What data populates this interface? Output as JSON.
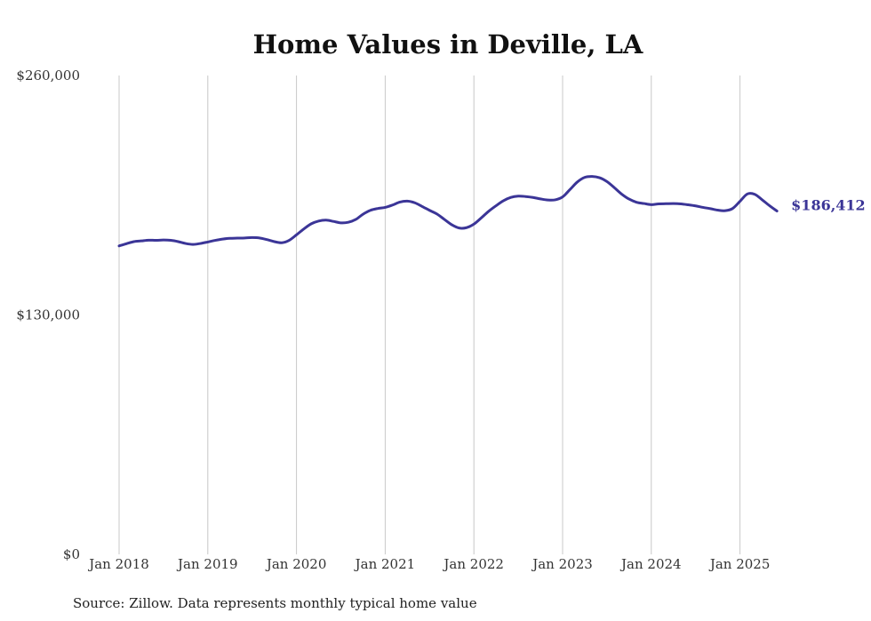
{
  "chart_data": {
    "type": "line",
    "title": "Home Values in Deville, LA",
    "source": "Source: Zillow. Data represents monthly typical home value",
    "ylim": [
      0,
      260000
    ],
    "yticks": [
      {
        "value": 0,
        "label": "$0"
      },
      {
        "value": 130000,
        "label": "$130,000"
      },
      {
        "value": 260000,
        "label": "$260,000"
      }
    ],
    "xticks": [
      {
        "date": "2018-01",
        "label": "Jan 2018"
      },
      {
        "date": "2019-01",
        "label": "Jan 2019"
      },
      {
        "date": "2020-01",
        "label": "Jan 2020"
      },
      {
        "date": "2021-01",
        "label": "Jan 2021"
      },
      {
        "date": "2022-01",
        "label": "Jan 2022"
      },
      {
        "date": "2023-01",
        "label": "Jan 2023"
      },
      {
        "date": "2024-01",
        "label": "Jan 2024"
      },
      {
        "date": "2025-01",
        "label": "Jan 2025"
      }
    ],
    "grid": "vertical",
    "line_color": "#3b3597",
    "end_label": "$186,412",
    "series": [
      {
        "dates": [
          "2018-01",
          "2018-02",
          "2018-03",
          "2018-04",
          "2018-05",
          "2018-06",
          "2018-07",
          "2018-08",
          "2018-09",
          "2018-10",
          "2018-11",
          "2018-12",
          "2019-01",
          "2019-02",
          "2019-03",
          "2019-04",
          "2019-05",
          "2019-06",
          "2019-07",
          "2019-08",
          "2019-09",
          "2019-10",
          "2019-11",
          "2019-12",
          "2020-01",
          "2020-02",
          "2020-03",
          "2020-04",
          "2020-05",
          "2020-06",
          "2020-07",
          "2020-08",
          "2020-09",
          "2020-10",
          "2020-11",
          "2020-12",
          "2021-01",
          "2021-02",
          "2021-03",
          "2021-04",
          "2021-05",
          "2021-06",
          "2021-07",
          "2021-08",
          "2021-09",
          "2021-10",
          "2021-11",
          "2021-12",
          "2022-01",
          "2022-02",
          "2022-03",
          "2022-04",
          "2022-05",
          "2022-06",
          "2022-07",
          "2022-08",
          "2022-09",
          "2022-10",
          "2022-11",
          "2022-12",
          "2023-01",
          "2023-02",
          "2023-03",
          "2023-04",
          "2023-05",
          "2023-06",
          "2023-07",
          "2023-08",
          "2023-09",
          "2023-10",
          "2023-11",
          "2023-12",
          "2024-01",
          "2024-02",
          "2024-03",
          "2024-04",
          "2024-05",
          "2024-06",
          "2024-07",
          "2024-08",
          "2024-09",
          "2024-10",
          "2024-11",
          "2024-12",
          "2025-01",
          "2025-02",
          "2025-03",
          "2025-04",
          "2025-05",
          "2025-06"
        ],
        "values": [
          167500,
          168700,
          169800,
          170200,
          170600,
          170500,
          170700,
          170500,
          169800,
          168800,
          168300,
          168800,
          169600,
          170500,
          171200,
          171600,
          171700,
          171800,
          172000,
          171800,
          170900,
          169800,
          169200,
          170500,
          173500,
          176700,
          179500,
          181000,
          181500,
          180800,
          180000,
          180300,
          181800,
          184700,
          186800,
          187800,
          188400,
          189700,
          191300,
          191800,
          190900,
          188900,
          186800,
          184800,
          181900,
          179000,
          177200,
          177400,
          179300,
          182700,
          186300,
          189300,
          192000,
          193800,
          194500,
          194300,
          193800,
          193000,
          192400,
          192500,
          194100,
          198100,
          202200,
          204700,
          205200,
          204500,
          202400,
          199100,
          195600,
          192900,
          191200,
          190500,
          189900,
          190300,
          190400,
          190500,
          190300,
          189800,
          189200,
          188400,
          187700,
          186900,
          186600,
          187800,
          191700,
          195700,
          195500,
          192500,
          189300,
          186412
        ]
      }
    ]
  }
}
